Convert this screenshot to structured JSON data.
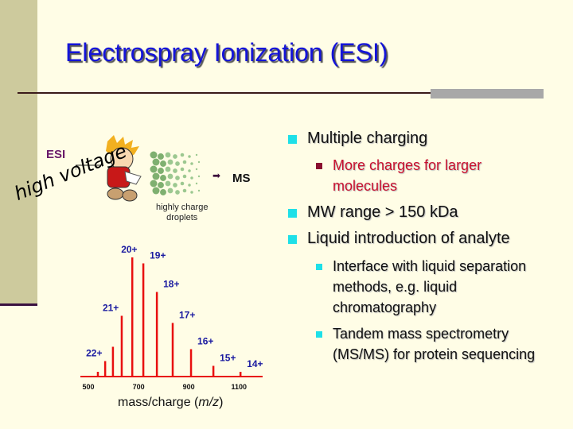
{
  "slide": {
    "title": "Electrospray Ionization (ESI)",
    "bullets": [
      {
        "text": "Multiple charging",
        "sub": [
          {
            "text": "More charges for larger molecules",
            "color": "#c8102e"
          }
        ]
      },
      {
        "text": "MW range > 150 kDa",
        "sub": []
      },
      {
        "text": "Liquid introduction of analyte",
        "sub": [
          {
            "text": "Interface with liquid separation methods, e.g. liquid chromatography"
          },
          {
            "text": "Tandem mass spectrometry (MS/MS) for protein sequencing"
          }
        ]
      }
    ]
  },
  "diagram": {
    "esi_label": "ESI",
    "high_voltage_label": "high voltage",
    "droplets_label_1": "highly charge",
    "droplets_label_2": "droplets",
    "ms_label": "MS",
    "arrow_icon": "right-arrow-icon"
  },
  "colors": {
    "title": "#1414d8",
    "sidebar": "#cdca9d",
    "bullet": "#1ee0e8",
    "spectrum": "#e81010",
    "peak_label": "#1a1aa0"
  },
  "chart_data": {
    "type": "bar",
    "xlabel_prefix": "mass/charge (",
    "xlabel_italic": "m/z",
    "xlabel_suffix": ")",
    "xlim": [
      470,
      1180
    ],
    "ylabel": "",
    "x_ticks": [
      "500",
      "700",
      "900",
      "1100"
    ],
    "x_tick_values": [
      500,
      700,
      900,
      1100
    ],
    "grid": false,
    "peaks": [
      {
        "mz": 538,
        "intensity": 4,
        "label": ""
      },
      {
        "mz": 567,
        "intensity": 13,
        "label": "22+"
      },
      {
        "mz": 598,
        "intensity": 25,
        "label": ""
      },
      {
        "mz": 633,
        "intensity": 51,
        "label": "21+"
      },
      {
        "mz": 675,
        "intensity": 100,
        "label": "20+"
      },
      {
        "mz": 719,
        "intensity": 95,
        "label": "19+"
      },
      {
        "mz": 773,
        "intensity": 71,
        "label": "18+"
      },
      {
        "mz": 836,
        "intensity": 45,
        "label": "17+"
      },
      {
        "mz": 909,
        "intensity": 23,
        "label": "16+"
      },
      {
        "mz": 998,
        "intensity": 9,
        "label": "15+"
      },
      {
        "mz": 1106,
        "intensity": 4,
        "label": "14+"
      }
    ]
  }
}
